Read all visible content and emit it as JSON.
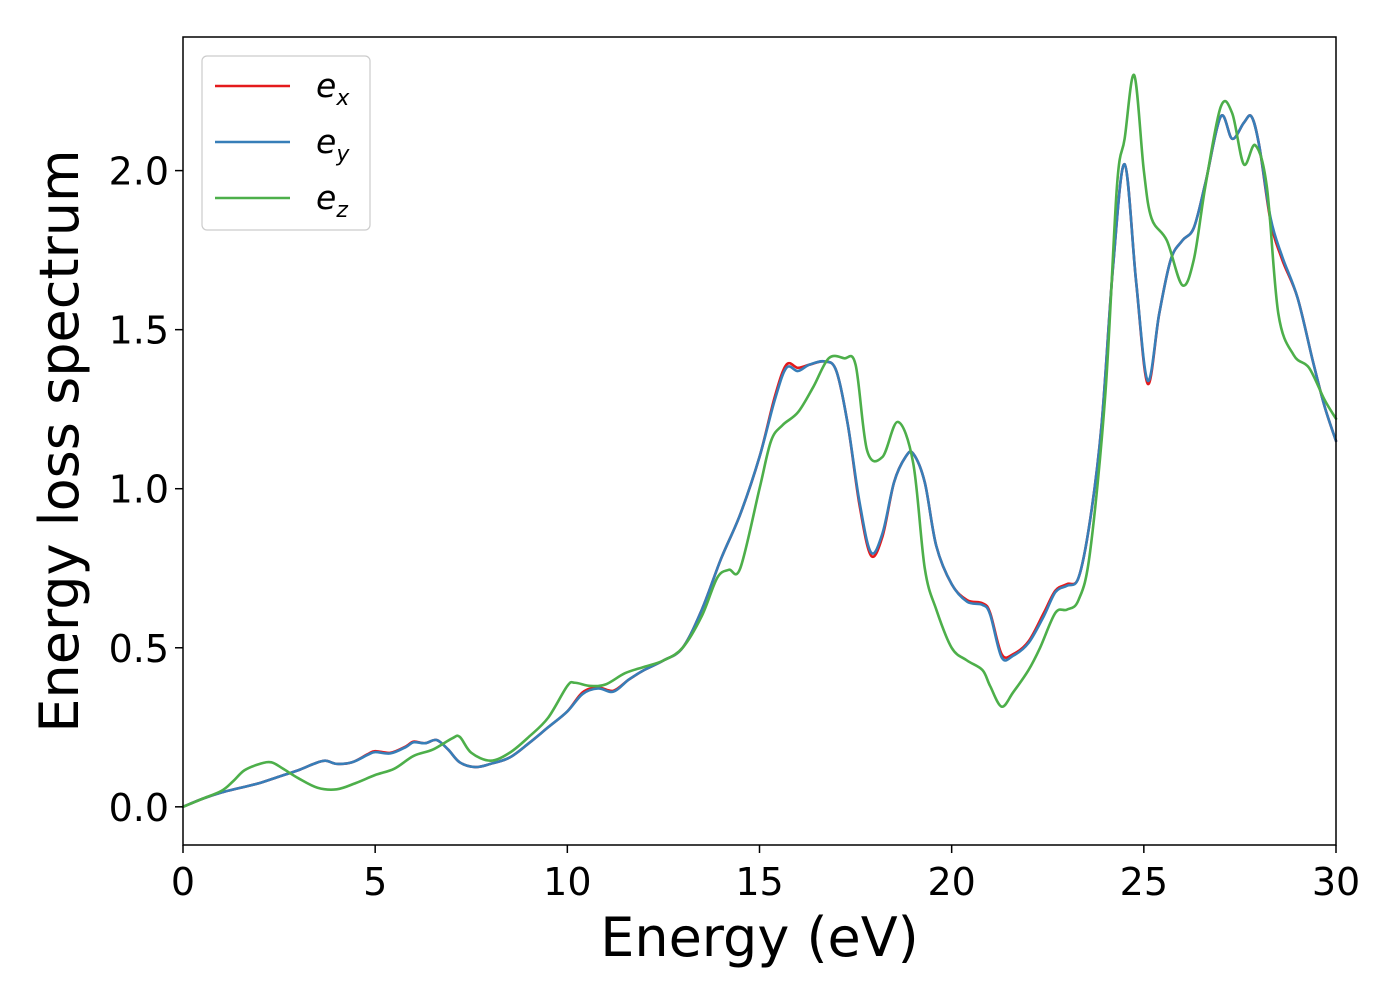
{
  "chart_data": {
    "type": "line",
    "title": "",
    "xlabel": "Energy (eV)",
    "ylabel": "Energy loss spectrum",
    "xlim": [
      0,
      30
    ],
    "ylim": [
      -0.12,
      2.42
    ],
    "xticks": [
      {
        "value": 0,
        "label": "0"
      },
      {
        "value": 5,
        "label": "5"
      },
      {
        "value": 10,
        "label": "10"
      },
      {
        "value": 15,
        "label": "15"
      },
      {
        "value": 20,
        "label": "20"
      },
      {
        "value": 25,
        "label": "25"
      },
      {
        "value": 30,
        "label": "30"
      }
    ],
    "yticks": [
      {
        "value": 0.0,
        "label": "0.0"
      },
      {
        "value": 0.5,
        "label": "0.5"
      },
      {
        "value": 1.0,
        "label": "1.0"
      },
      {
        "value": 1.5,
        "label": "1.5"
      },
      {
        "value": 2.0,
        "label": "2.0"
      }
    ],
    "grid": false,
    "legend": {
      "position": "top-left",
      "entries": [
        {
          "base": "e",
          "sub": "x",
          "color": "#e41a1c"
        },
        {
          "base": "e",
          "sub": "y",
          "color": "#377eb8"
        },
        {
          "base": "e",
          "sub": "z",
          "color": "#4daf4a"
        }
      ]
    },
    "series": [
      {
        "color": "#e41a1c",
        "x": [
          0,
          0.5,
          1.0,
          1.5,
          2.0,
          2.5,
          3.0,
          3.4,
          3.7,
          4.0,
          4.4,
          4.8,
          5.0,
          5.4,
          5.8,
          6.0,
          6.3,
          6.6,
          6.9,
          7.2,
          7.6,
          8.0,
          8.5,
          9.0,
          9.5,
          10.0,
          10.4,
          10.8,
          11.2,
          11.6,
          12.0,
          12.5,
          13.0,
          13.5,
          14.0,
          14.5,
          15.0,
          15.4,
          15.7,
          16.0,
          16.3,
          16.7,
          17.0,
          17.3,
          17.6,
          17.9,
          18.2,
          18.5,
          18.8,
          19.0,
          19.3,
          19.6,
          20.0,
          20.4,
          20.8,
          21.0,
          21.3,
          21.6,
          22.0,
          22.4,
          22.7,
          23.0,
          23.3,
          23.6,
          23.9,
          24.2,
          24.5,
          24.8,
          25.1,
          25.4,
          25.7,
          26.0,
          26.3,
          26.6,
          27.0,
          27.3,
          27.6,
          27.8,
          28.0,
          28.3,
          28.6,
          29.0,
          29.4,
          29.7,
          30.0
        ],
        "values": [
          0.0,
          0.025,
          0.045,
          0.06,
          0.075,
          0.095,
          0.115,
          0.135,
          0.145,
          0.135,
          0.14,
          0.165,
          0.175,
          0.17,
          0.19,
          0.205,
          0.2,
          0.21,
          0.18,
          0.14,
          0.125,
          0.135,
          0.155,
          0.2,
          0.25,
          0.3,
          0.36,
          0.375,
          0.365,
          0.4,
          0.43,
          0.46,
          0.5,
          0.62,
          0.78,
          0.92,
          1.1,
          1.29,
          1.39,
          1.38,
          1.39,
          1.4,
          1.37,
          1.2,
          0.95,
          0.79,
          0.85,
          1.02,
          1.1,
          1.11,
          1.02,
          0.82,
          0.7,
          0.65,
          0.64,
          0.61,
          0.48,
          0.48,
          0.52,
          0.61,
          0.68,
          0.7,
          0.72,
          0.9,
          1.2,
          1.7,
          2.02,
          1.65,
          1.33,
          1.55,
          1.72,
          1.78,
          1.82,
          1.96,
          2.17,
          2.1,
          2.15,
          2.17,
          2.08,
          1.84,
          1.72,
          1.6,
          1.4,
          1.26,
          1.15
        ]
      },
      {
        "color": "#377eb8",
        "x": [
          0,
          0.5,
          1.0,
          1.5,
          2.0,
          2.5,
          3.0,
          3.4,
          3.7,
          4.0,
          4.4,
          4.8,
          5.0,
          5.4,
          5.8,
          6.0,
          6.3,
          6.6,
          6.9,
          7.2,
          7.6,
          8.0,
          8.5,
          9.0,
          9.5,
          10.0,
          10.4,
          10.8,
          11.2,
          11.6,
          12.0,
          12.5,
          13.0,
          13.5,
          14.0,
          14.5,
          15.0,
          15.4,
          15.7,
          16.0,
          16.3,
          16.7,
          17.0,
          17.3,
          17.6,
          17.9,
          18.2,
          18.5,
          18.8,
          19.0,
          19.3,
          19.6,
          20.0,
          20.4,
          20.8,
          21.0,
          21.3,
          21.6,
          22.0,
          22.4,
          22.7,
          23.0,
          23.3,
          23.6,
          23.9,
          24.2,
          24.5,
          24.8,
          25.1,
          25.4,
          25.7,
          26.0,
          26.3,
          26.6,
          27.0,
          27.3,
          27.6,
          27.8,
          28.0,
          28.3,
          28.6,
          29.0,
          29.4,
          29.7,
          30.0
        ],
        "values": [
          0.0,
          0.025,
          0.045,
          0.06,
          0.075,
          0.095,
          0.115,
          0.135,
          0.145,
          0.135,
          0.14,
          0.163,
          0.172,
          0.168,
          0.188,
          0.203,
          0.2,
          0.21,
          0.18,
          0.14,
          0.125,
          0.135,
          0.155,
          0.2,
          0.25,
          0.3,
          0.355,
          0.372,
          0.362,
          0.4,
          0.43,
          0.46,
          0.5,
          0.62,
          0.78,
          0.92,
          1.1,
          1.28,
          1.38,
          1.37,
          1.39,
          1.4,
          1.37,
          1.2,
          0.96,
          0.8,
          0.86,
          1.02,
          1.1,
          1.11,
          1.02,
          0.82,
          0.7,
          0.645,
          0.635,
          0.605,
          0.47,
          0.475,
          0.515,
          0.6,
          0.675,
          0.695,
          0.72,
          0.9,
          1.2,
          1.7,
          2.02,
          1.65,
          1.34,
          1.55,
          1.72,
          1.78,
          1.82,
          1.96,
          2.17,
          2.1,
          2.15,
          2.17,
          2.08,
          1.85,
          1.73,
          1.6,
          1.4,
          1.26,
          1.15
        ]
      },
      {
        "color": "#4daf4a",
        "x": [
          0,
          0.5,
          1.0,
          1.3,
          1.6,
          2.0,
          2.3,
          2.6,
          3.0,
          3.5,
          4.0,
          4.5,
          5.0,
          5.5,
          6.0,
          6.5,
          7.0,
          7.2,
          7.5,
          8.0,
          8.5,
          9.0,
          9.5,
          10.0,
          10.2,
          10.6,
          11.0,
          11.5,
          12.0,
          12.5,
          13.0,
          13.5,
          13.9,
          14.2,
          14.5,
          15.0,
          15.3,
          15.6,
          16.0,
          16.4,
          16.8,
          17.2,
          17.5,
          17.8,
          18.2,
          18.6,
          19.0,
          19.3,
          19.6,
          20.0,
          20.4,
          20.8,
          21.0,
          21.3,
          21.6,
          22.0,
          22.3,
          22.7,
          23.0,
          23.3,
          23.6,
          24.0,
          24.3,
          24.5,
          24.75,
          25.0,
          25.2,
          25.6,
          26.0,
          26.3,
          26.6,
          27.0,
          27.3,
          27.6,
          27.9,
          28.2,
          28.5,
          28.9,
          29.3,
          29.7,
          30.0
        ],
        "values": [
          0.0,
          0.025,
          0.05,
          0.08,
          0.115,
          0.135,
          0.14,
          0.12,
          0.09,
          0.06,
          0.055,
          0.075,
          0.1,
          0.12,
          0.16,
          0.18,
          0.215,
          0.22,
          0.17,
          0.145,
          0.17,
          0.22,
          0.28,
          0.38,
          0.39,
          0.38,
          0.385,
          0.42,
          0.44,
          0.46,
          0.5,
          0.6,
          0.72,
          0.745,
          0.75,
          1.0,
          1.15,
          1.2,
          1.24,
          1.32,
          1.41,
          1.41,
          1.39,
          1.12,
          1.1,
          1.21,
          1.08,
          0.75,
          0.62,
          0.5,
          0.46,
          0.43,
          0.38,
          0.315,
          0.36,
          0.43,
          0.5,
          0.61,
          0.62,
          0.65,
          0.8,
          1.3,
          1.95,
          2.1,
          2.3,
          2.0,
          1.85,
          1.78,
          1.64,
          1.72,
          1.95,
          2.2,
          2.18,
          2.02,
          2.08,
          1.95,
          1.55,
          1.42,
          1.38,
          1.28,
          1.22
        ]
      }
    ]
  }
}
